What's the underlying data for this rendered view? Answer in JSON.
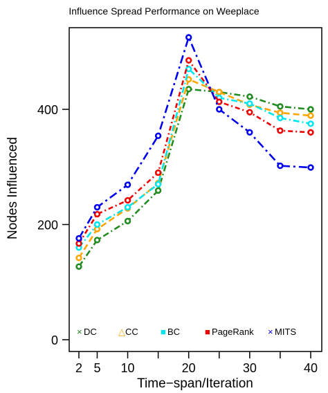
{
  "chart_data": {
    "type": "line",
    "title": "Influence Spread Performance on  Weeplace",
    "xlabel": "Time−span/Iteration",
    "ylabel": "Nodes Influenced",
    "x": [
      2,
      5,
      10,
      15,
      20,
      25,
      30,
      35,
      40
    ],
    "x_ticks": [
      2,
      5,
      10,
      15,
      20,
      25,
      30,
      35,
      40
    ],
    "x_tick_labels": [
      "2",
      "5",
      "10",
      "",
      "20",
      "",
      "30",
      "",
      "40"
    ],
    "ylim": [
      0,
      570
    ],
    "y_ticks": [
      0,
      200,
      400
    ],
    "y_tick_labels": [
      "0",
      "200",
      "400"
    ],
    "grid": false,
    "legend_position": "bottom",
    "series": [
      {
        "name": "DC",
        "legend_symbol": "×",
        "color": "#228B22",
        "dash": "9,4,2,4",
        "values": [
          127,
          173,
          206,
          259,
          435,
          430,
          422,
          405,
          400
        ]
      },
      {
        "name": "CC",
        "legend_symbol": "△",
        "color": "#FFA500",
        "dash": "9,5",
        "values": [
          142,
          192,
          228,
          272,
          452,
          430,
          408,
          394,
          389
        ]
      },
      {
        "name": "BC",
        "legend_symbol": "■",
        "color": "#00E5EE",
        "dash": "9,4,2,4",
        "values": [
          160,
          200,
          230,
          270,
          470,
          420,
          410,
          385,
          375
        ]
      },
      {
        "name": "PageRank",
        "legend_symbol": "■",
        "color": "#EE0000",
        "dash": "7,4,2,4",
        "values": [
          167,
          218,
          242,
          290,
          485,
          413,
          395,
          363,
          360
        ]
      },
      {
        "name": "MITS",
        "legend_symbol": "×",
        "color": "#0000EE",
        "dash": "12,5,3,5",
        "values": [
          176,
          230,
          269,
          354,
          525,
          400,
          360,
          302,
          299
        ]
      }
    ]
  }
}
